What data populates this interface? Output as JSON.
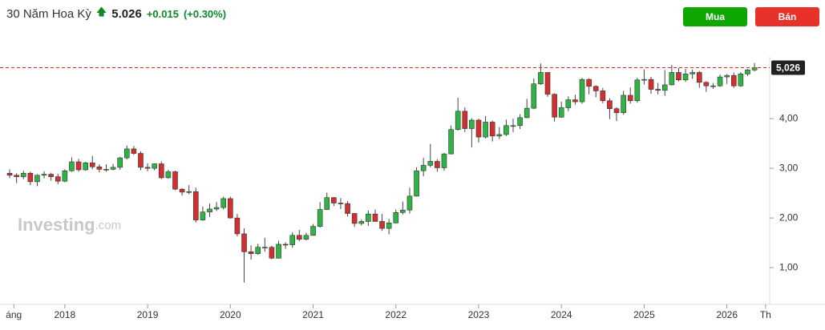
{
  "header": {
    "title": "30 Năm Hoa Kỳ",
    "price": "5.026",
    "change": "+0.015",
    "change_pct": "(+0.30%)"
  },
  "buttons": [
    "Mua",
    "Bán"
  ],
  "watermark": [
    "Investing",
    ".com"
  ],
  "chart_data": {
    "type": "candlestick",
    "up_color": "#2fb344",
    "down_color": "#d32f2f",
    "open": [
      2.9,
      2.86,
      2.83,
      2.9,
      2.73,
      2.86,
      2.88,
      2.83,
      2.74,
      2.95,
      3.13,
      2.97,
      3.11,
      3.03,
      2.98,
      2.98,
      3.02,
      3.21,
      3.39,
      3.3,
      3.02,
      3.0,
      3.09,
      2.81,
      2.93,
      2.58,
      2.52,
      2.53,
      1.96,
      2.12,
      2.18,
      2.21,
      2.39,
      2.0,
      1.68,
      1.32,
      1.28,
      1.41,
      1.41,
      1.19,
      1.47,
      1.46,
      1.65,
      1.57,
      1.65,
      1.83,
      2.17,
      2.41,
      2.3,
      2.29,
      2.09,
      1.89,
      1.93,
      2.08,
      1.93,
      1.79,
      1.9,
      2.11,
      2.16,
      2.44,
      2.95,
      3.06,
      3.14,
      3.01,
      3.29,
      3.78,
      4.15,
      3.8,
      3.97,
      3.63,
      3.93,
      3.65,
      3.68,
      3.86,
      3.86,
      4.02,
      4.21,
      4.7,
      4.93,
      4.49,
      4.03,
      4.22,
      4.38,
      4.34,
      4.79,
      4.65,
      4.56,
      4.36,
      4.2,
      4.12,
      4.47,
      4.36,
      4.78,
      4.79,
      4.59,
      4.57,
      4.68,
      4.93,
      4.78,
      4.9,
      4.93,
      4.73,
      4.66,
      4.66,
      4.84,
      4.87,
      4.66,
      4.9,
      4.98
    ],
    "high": [
      2.98,
      2.9,
      2.95,
      2.93,
      2.88,
      2.94,
      2.91,
      2.89,
      2.98,
      3.22,
      3.19,
      3.13,
      3.25,
      3.08,
      3.08,
      3.09,
      3.23,
      3.46,
      3.45,
      3.34,
      3.1,
      3.1,
      3.14,
      2.97,
      2.95,
      2.6,
      2.66,
      2.61,
      2.23,
      2.29,
      2.32,
      2.43,
      2.43,
      2.08,
      1.79,
      1.45,
      1.48,
      1.6,
      1.44,
      1.54,
      1.51,
      1.71,
      1.76,
      1.7,
      1.88,
      2.32,
      2.51,
      2.42,
      2.4,
      2.34,
      2.1,
      1.97,
      2.15,
      2.17,
      2.08,
      1.98,
      2.17,
      2.33,
      2.61,
      3.02,
      3.21,
      3.49,
      3.18,
      3.31,
      3.86,
      4.42,
      4.23,
      4.01,
      4.0,
      4.05,
      3.96,
      3.83,
      3.98,
      4.0,
      4.09,
      4.4,
      4.81,
      5.11,
      4.93,
      4.51,
      4.34,
      4.45,
      4.48,
      4.82,
      4.81,
      4.67,
      4.62,
      4.41,
      4.23,
      4.56,
      4.63,
      4.82,
      4.99,
      4.84,
      4.72,
      4.98,
      5.08,
      5.02,
      5.0,
      4.99,
      4.96,
      4.75,
      4.72,
      4.89,
      4.9,
      4.93,
      4.94,
      5.0,
      5.12
    ],
    "low": [
      2.8,
      2.7,
      2.78,
      2.66,
      2.64,
      2.8,
      2.75,
      2.68,
      2.72,
      2.93,
      2.93,
      2.95,
      2.98,
      2.92,
      2.93,
      2.96,
      2.97,
      3.18,
      3.27,
      2.96,
      2.94,
      2.96,
      2.78,
      2.79,
      2.56,
      2.45,
      2.48,
      1.91,
      1.94,
      2.02,
      2.14,
      2.17,
      1.99,
      1.63,
      0.7,
      1.16,
      1.26,
      1.32,
      1.17,
      1.19,
      1.38,
      1.4,
      1.53,
      1.55,
      1.64,
      1.81,
      2.16,
      2.24,
      2.18,
      2.03,
      1.82,
      1.85,
      1.84,
      1.93,
      1.74,
      1.67,
      1.89,
      2.07,
      2.09,
      2.43,
      2.84,
      3.02,
      2.93,
      2.95,
      3.28,
      3.76,
      3.73,
      3.42,
      3.52,
      3.6,
      3.54,
      3.59,
      3.65,
      3.73,
      3.79,
      4.01,
      4.19,
      4.68,
      4.44,
      3.94,
      4.02,
      4.15,
      4.28,
      4.3,
      4.49,
      4.43,
      4.31,
      3.99,
      3.95,
      4.08,
      4.3,
      4.32,
      4.69,
      4.5,
      4.49,
      4.46,
      4.67,
      4.75,
      4.74,
      4.8,
      4.62,
      4.54,
      4.6,
      4.64,
      4.7,
      4.62,
      4.64,
      4.86,
      4.95
    ],
    "close": [
      2.86,
      2.83,
      2.9,
      2.73,
      2.86,
      2.88,
      2.83,
      2.74,
      2.95,
      3.13,
      2.97,
      3.11,
      3.03,
      2.98,
      2.98,
      3.02,
      3.21,
      3.39,
      3.3,
      3.02,
      3.0,
      3.09,
      2.81,
      2.93,
      2.58,
      2.52,
      2.53,
      1.96,
      2.12,
      2.18,
      2.21,
      2.39,
      2.0,
      1.68,
      1.32,
      1.28,
      1.41,
      1.41,
      1.19,
      1.47,
      1.46,
      1.65,
      1.57,
      1.65,
      1.83,
      2.17,
      2.41,
      2.3,
      2.29,
      2.09,
      1.89,
      1.93,
      2.08,
      1.93,
      1.79,
      1.9,
      2.11,
      2.16,
      2.44,
      2.95,
      3.06,
      3.14,
      3.01,
      3.29,
      3.78,
      4.15,
      3.8,
      3.97,
      3.63,
      3.93,
      3.65,
      3.68,
      3.86,
      3.86,
      4.02,
      4.21,
      4.7,
      4.93,
      4.49,
      4.03,
      4.22,
      4.38,
      4.34,
      4.79,
      4.65,
      4.56,
      4.36,
      4.2,
      4.12,
      4.47,
      4.36,
      4.78,
      4.79,
      4.59,
      4.57,
      4.68,
      4.93,
      4.78,
      4.9,
      4.93,
      4.73,
      4.66,
      4.66,
      4.84,
      4.87,
      4.66,
      4.9,
      4.98,
      5.026
    ],
    "xlim": [
      -1.4,
      110.2
    ],
    "xticks": [
      {
        "value": 0.6,
        "label": "áng"
      },
      {
        "value": 8,
        "label": "2018"
      },
      {
        "value": 20,
        "label": "2019"
      },
      {
        "value": 32,
        "label": "2020"
      },
      {
        "value": 44,
        "label": "2021"
      },
      {
        "value": 56,
        "label": "2022"
      },
      {
        "value": 68,
        "label": "2023"
      },
      {
        "value": 80,
        "label": "2024"
      },
      {
        "value": 92,
        "label": "2025"
      },
      {
        "value": 104,
        "label": "2026"
      },
      {
        "value": 109.6,
        "label": "Th"
      }
    ],
    "ylim": [
      0.26,
      5.26
    ],
    "yticks": [
      {
        "value": 1,
        "label": "1,00"
      },
      {
        "value": 2,
        "label": "2,00"
      },
      {
        "value": 3,
        "label": "3,00"
      },
      {
        "value": 4,
        "label": "4,00"
      }
    ],
    "current_price": {
      "value": 5.026,
      "label": "5,026"
    },
    "current_price_color": "#d32f2f"
  }
}
